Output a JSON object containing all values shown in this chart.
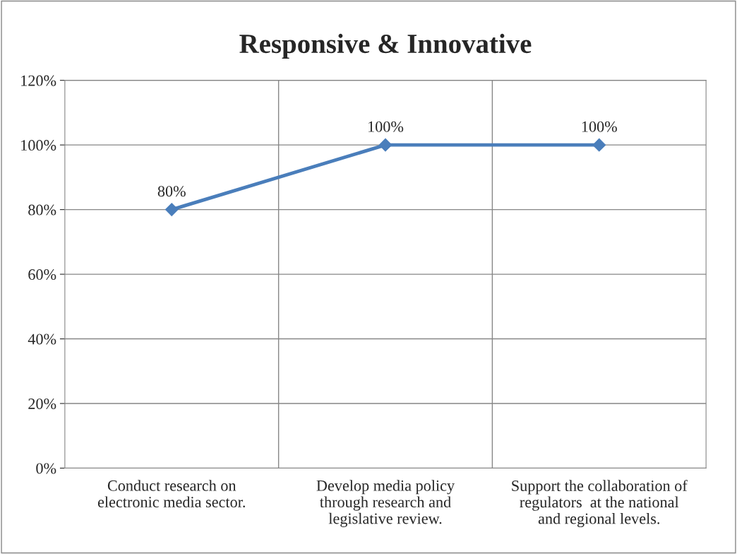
{
  "chart_data": {
    "type": "line",
    "title": "Responsive & Innovative",
    "categories": [
      "Conduct research on\nelectronic media sector.",
      "Develop media policy\nthrough research and\nlegislative review.",
      "Support the collaboration of\nregulators  at the national\nand regional levels."
    ],
    "series": [
      {
        "color": "#4a7ebb",
        "values": [
          80,
          100,
          100
        ],
        "value_labels": [
          "80%",
          "100%",
          "100%"
        ]
      }
    ],
    "ylim": [
      0,
      120
    ],
    "yticks": [
      {
        "value": 0,
        "label": "0%"
      },
      {
        "value": 20,
        "label": "20%"
      },
      {
        "value": 40,
        "label": "40%"
      },
      {
        "value": 60,
        "label": "60%"
      },
      {
        "value": 80,
        "label": "80%"
      },
      {
        "value": 100,
        "label": "100%"
      },
      {
        "value": 120,
        "label": "120%"
      }
    ],
    "grid": true,
    "marker": "diamond",
    "line_style": "solid"
  }
}
